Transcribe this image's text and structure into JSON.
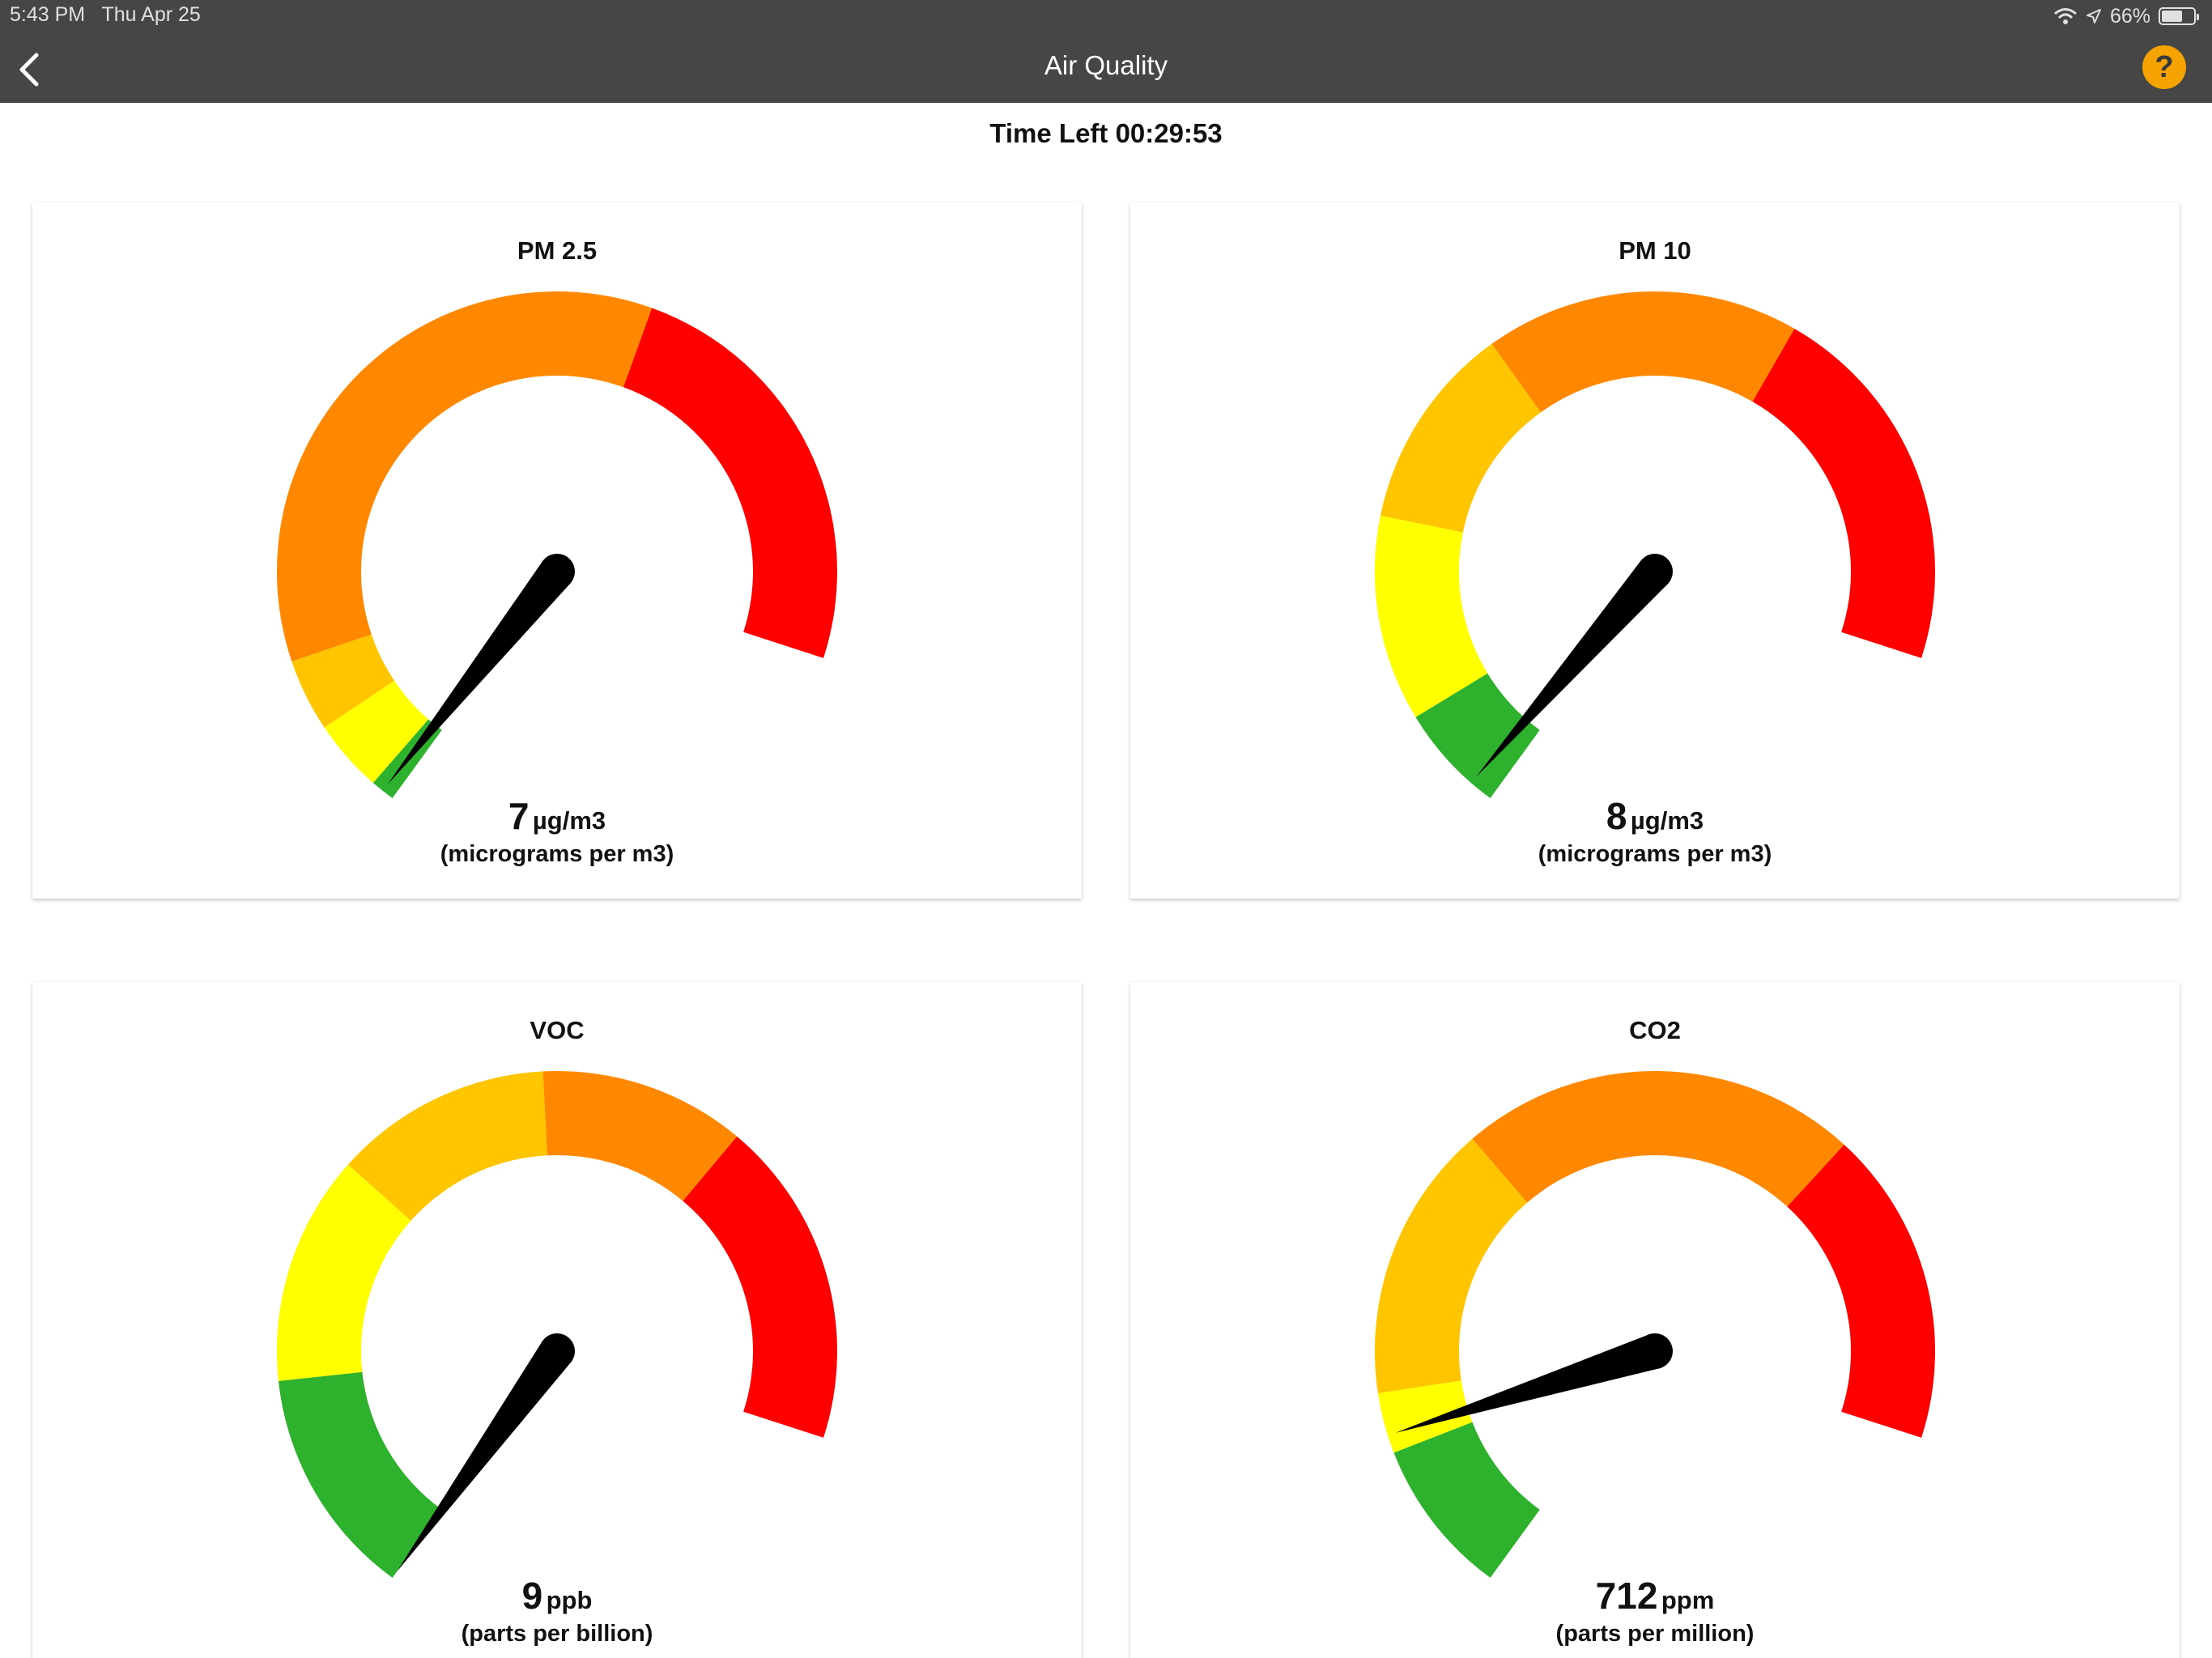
{
  "status_bar": {
    "time": "5:43 PM",
    "date": "Thu Apr 25",
    "battery": "66%",
    "battery_level": 0.66
  },
  "header": {
    "title": "Air Quality",
    "back_icon": "chevron-left-icon",
    "help_label": "?"
  },
  "time_left": "Time Left 00:29:53",
  "colors": {
    "green": "#2eb22e",
    "yellow": "#ffff00",
    "amber": "#ffc600",
    "orange": "#ff8800",
    "red": "#ff0000",
    "needle": "#000000",
    "header_bg": "#464646",
    "help": "#f5a300"
  },
  "gauges": [
    {
      "title": "PM 2.5",
      "value": "7",
      "unit": "µg/m3",
      "unit_description": "(micrograms per m3)",
      "needle_fraction": 0.01,
      "bands": [
        {
          "color": "green",
          "fraction": 0.02
        },
        {
          "color": "yellow",
          "fraction": 0.06
        },
        {
          "color": "amber",
          "fraction": 0.06
        },
        {
          "color": "orange",
          "fraction": 0.51
        },
        {
          "color": "red",
          "fraction": 0.35
        }
      ]
    },
    {
      "title": "PM 10",
      "value": "8",
      "unit": "µg/m3",
      "unit_description": "(micrograms per m3)",
      "needle_fraction": 0.02,
      "bands": [
        {
          "color": "green",
          "fraction": 0.09
        },
        {
          "color": "yellow",
          "fraction": 0.17
        },
        {
          "color": "amber",
          "fraction": 0.17
        },
        {
          "color": "orange",
          "fraction": 0.26
        },
        {
          "color": "red",
          "fraction": 0.31
        }
      ]
    },
    {
      "title": "VOC",
      "value": "9",
      "unit": "ppb",
      "unit_description": "(parts per billion)",
      "needle_fraction": 0.0,
      "bands": [
        {
          "color": "green",
          "fraction": 0.19
        },
        {
          "color": "yellow",
          "fraction": 0.19
        },
        {
          "color": "amber",
          "fraction": 0.18
        },
        {
          "color": "orange",
          "fraction": 0.17
        },
        {
          "color": "red",
          "fraction": 0.27
        }
      ]
    },
    {
      "title": "CO2",
      "value": "712",
      "unit": "ppm",
      "unit_description": "(parts per million)",
      "needle_fraction": 0.145,
      "bands": [
        {
          "color": "green",
          "fraction": 0.13
        },
        {
          "color": "yellow",
          "fraction": 0.05
        },
        {
          "color": "amber",
          "fraction": 0.23
        },
        {
          "color": "orange",
          "fraction": 0.33
        },
        {
          "color": "red",
          "fraction": 0.26
        }
      ]
    }
  ]
}
